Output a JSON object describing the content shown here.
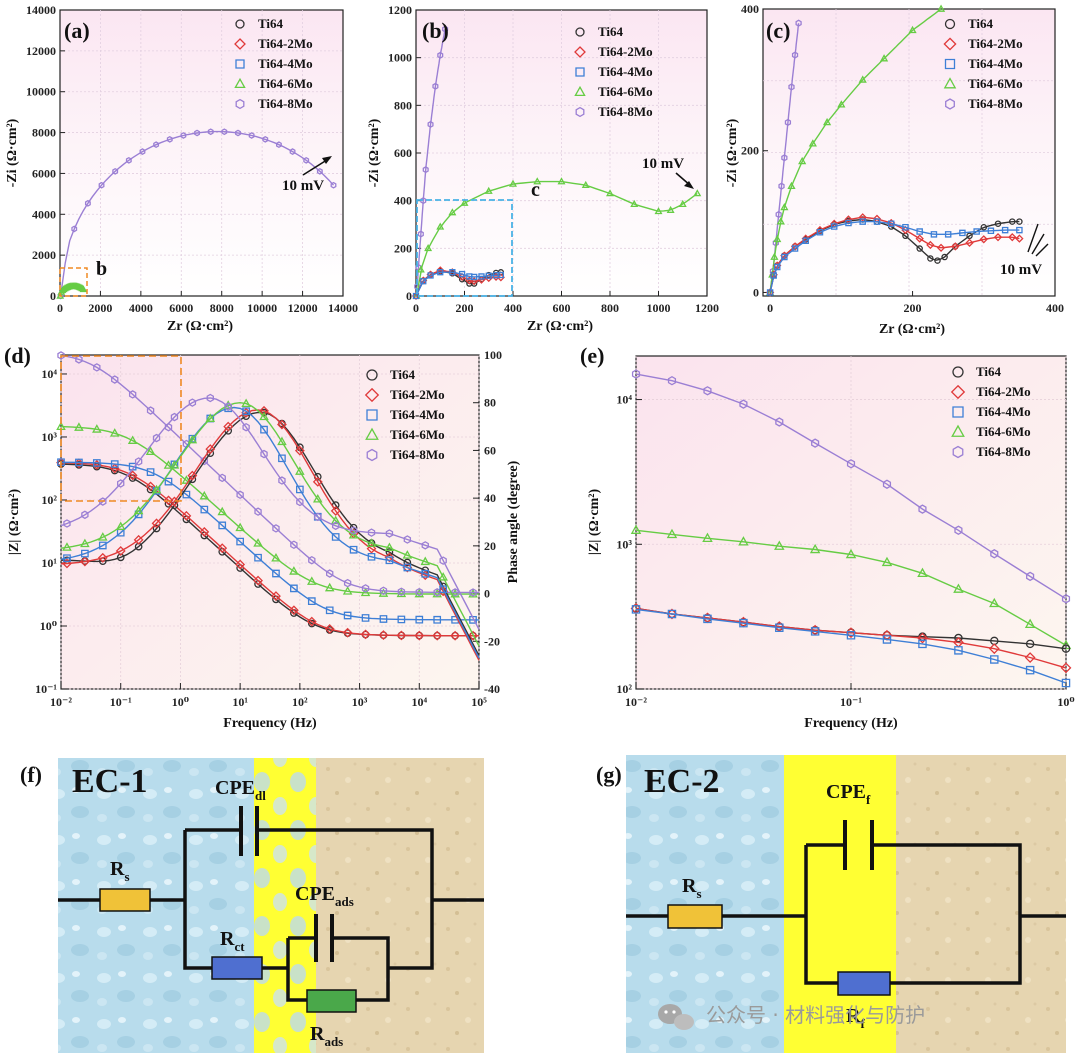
{
  "series_names": [
    "Ti64",
    "Ti64-2Mo",
    "Ti64-4Mo",
    "Ti64-6Mo",
    "Ti64-8Mo"
  ],
  "colors": {
    "Ti64": "#333333",
    "Ti64-2Mo": "#e03a3a",
    "Ti64-4Mo": "#3e7fd6",
    "Ti64-6Mo": "#66cc44",
    "Ti64-8Mo": "#9b7fd4",
    "box_orange": "#f08a24",
    "box_blue": "#4ab3e6",
    "resistor_rs": "#f0c238",
    "resistor_ct": "#4f6fd0",
    "resistor_ads": "#4aa84a",
    "yellow": "#ffff33"
  },
  "chart_data": [
    {
      "panel": "(a)",
      "type": "scatter",
      "title": "",
      "xlabel": "Zr (Ω·cm²)",
      "ylabel": "-Zi (Ω·cm²)",
      "xlim": [
        0,
        14000
      ],
      "ylim": [
        0,
        14000
      ],
      "xticks": [
        "0",
        "2000",
        "4000",
        "6000",
        "8000",
        "10000",
        "12000",
        "14000"
      ],
      "yticks": [
        "0",
        "2000",
        "4000",
        "6000",
        "8000",
        "10000",
        "12000",
        "14000"
      ],
      "legend": [
        "Ti64",
        "Ti64-2Mo",
        "Ti64-4Mo",
        "Ti64-6Mo",
        "Ti64-8Mo"
      ],
      "annotations": [
        "10 mV",
        "b"
      ],
      "series": [
        {
          "name": "Ti64-8Mo",
          "arc": {
            "rs": 30,
            "r": 13500,
            "ymax": 8050,
            "xend": 13500
          }
        },
        {
          "name": "Ti64-6Mo",
          "arc": {
            "rs": 10,
            "r": 1150,
            "ymax": 480,
            "xend": 1150
          }
        }
      ]
    },
    {
      "panel": "(b)",
      "type": "scatter",
      "title": "",
      "xlabel": "Zr (Ω·cm²)",
      "ylabel": "-Zi (Ω·cm²)",
      "xlim": [
        0,
        1200
      ],
      "ylim": [
        0,
        1200
      ],
      "xticks": [
        "0",
        "200",
        "400",
        "600",
        "800",
        "1000",
        "1200"
      ],
      "yticks": [
        "0",
        "200",
        "400",
        "600",
        "800",
        "1000",
        "1200"
      ],
      "legend": [
        "Ti64",
        "Ti64-2Mo",
        "Ti64-4Mo",
        "Ti64-6Mo",
        "Ti64-8Mo"
      ],
      "annotations": [
        "10 mV",
        "c"
      ],
      "series": [
        {
          "name": "Ti64-8Mo",
          "x": [
            5,
            10,
            20,
            30,
            40,
            60,
            80,
            100,
            120
          ],
          "y": [
            40,
            120,
            260,
            400,
            530,
            720,
            880,
            1010,
            1120
          ]
        },
        {
          "name": "Ti64-6Mo",
          "x": [
            2,
            20,
            50,
            100,
            150,
            200,
            300,
            400,
            500,
            600,
            700,
            800,
            900,
            1000,
            1050,
            1100,
            1160
          ],
          "y": [
            0,
            110,
            200,
            290,
            350,
            390,
            440,
            470,
            480,
            480,
            465,
            430,
            385,
            355,
            360,
            385,
            430
          ]
        },
        {
          "name": "Ti64",
          "x": [
            0,
            30,
            60,
            100,
            150,
            190,
            220,
            240,
            270,
            300,
            330,
            350
          ],
          "y": [
            0,
            65,
            90,
            105,
            95,
            70,
            52,
            52,
            70,
            88,
            97,
            100
          ]
        },
        {
          "name": "Ti64-2Mo",
          "x": [
            0,
            30,
            60,
            100,
            150,
            190,
            220,
            240,
            270,
            300,
            330,
            350
          ],
          "y": [
            0,
            65,
            90,
            108,
            100,
            80,
            65,
            62,
            68,
            75,
            80,
            78
          ]
        },
        {
          "name": "Ti64-4Mo",
          "x": [
            0,
            30,
            60,
            100,
            150,
            190,
            220,
            240,
            270,
            300,
            330,
            350
          ],
          "y": [
            0,
            62,
            86,
            100,
            100,
            92,
            82,
            80,
            82,
            85,
            87,
            88
          ]
        }
      ]
    },
    {
      "panel": "(c)",
      "type": "scatter",
      "title": "",
      "xlabel": "Zr (Ω·cm²)",
      "ylabel": "-Zi (Ω·cm²)",
      "xlim": [
        -10,
        400
      ],
      "ylim": [
        -5,
        400
      ],
      "xticks": [
        "0",
        "200",
        "400"
      ],
      "yticks": [
        "0",
        "200",
        "400"
      ],
      "legend": [
        "Ti64",
        "Ti64-2Mo",
        "Ti64-4Mo",
        "Ti64-6Mo",
        "Ti64-8Mo"
      ],
      "annotations": [
        "10 mV"
      ],
      "series": [
        {
          "name": "Ti64-8Mo",
          "x": [
            0,
            4,
            8,
            12,
            16,
            20,
            25,
            30,
            35,
            40
          ],
          "y": [
            0,
            30,
            70,
            110,
            150,
            190,
            240,
            290,
            335,
            380
          ]
        },
        {
          "name": "Ti64-6Mo",
          "x": [
            0,
            3,
            6,
            10,
            15,
            20,
            30,
            45,
            60,
            80,
            100,
            130,
            160,
            200,
            240
          ],
          "y": [
            0,
            25,
            50,
            75,
            100,
            120,
            150,
            185,
            210,
            240,
            265,
            300,
            330,
            370,
            400
          ]
        },
        {
          "name": "Ti64",
          "x": [
            0,
            5,
            10,
            20,
            35,
            50,
            70,
            90,
            110,
            130,
            150,
            170,
            190,
            210,
            225,
            235,
            245,
            260,
            280,
            300,
            320,
            340,
            350
          ],
          "y": [
            0,
            25,
            38,
            52,
            65,
            75,
            87,
            96,
            101,
            103,
            100,
            93,
            80,
            62,
            48,
            45,
            50,
            65,
            80,
            92,
            97,
            100,
            100
          ]
        },
        {
          "name": "Ti64-2Mo",
          "x": [
            0,
            5,
            10,
            20,
            35,
            50,
            70,
            90,
            110,
            130,
            150,
            170,
            190,
            210,
            225,
            240,
            260,
            280,
            300,
            320,
            340,
            350
          ],
          "y": [
            0,
            25,
            38,
            52,
            65,
            76,
            88,
            97,
            103,
            106,
            104,
            98,
            88,
            76,
            67,
            63,
            65,
            70,
            75,
            78,
            78,
            76
          ]
        },
        {
          "name": "Ti64-4Mo",
          "x": [
            0,
            5,
            10,
            20,
            35,
            50,
            70,
            90,
            110,
            130,
            150,
            170,
            190,
            210,
            230,
            250,
            270,
            290,
            310,
            330,
            350
          ],
          "y": [
            0,
            24,
            36,
            50,
            62,
            73,
            85,
            93,
            98,
            100,
            100,
            97,
            92,
            86,
            82,
            82,
            84,
            86,
            87,
            88,
            88
          ]
        }
      ]
    },
    {
      "panel": "(d)",
      "type": "scatter",
      "title": "",
      "xlabel": "Frequency (Hz)",
      "ylabel": "|Z| (Ω·cm²)",
      "y2label": "Phase angle (degree)",
      "xscale": "log",
      "yscale": "log",
      "xlim": [
        0.01,
        100000
      ],
      "ylim": [
        0.1,
        20000
      ],
      "y2lim": [
        -40,
        100
      ],
      "xticks": [
        "10⁻²",
        "10⁻¹",
        "10⁰",
        "10¹",
        "10²",
        "10³",
        "10⁴",
        "10⁵"
      ],
      "yticks": [
        "10⁻¹",
        "10⁰",
        "10¹",
        "10²",
        "10³",
        "10⁴"
      ],
      "y2ticks": [
        "-40",
        "-20",
        "0",
        "20",
        "40",
        "60",
        "80",
        "100"
      ],
      "legend": [
        "Ti64",
        "Ti64-2Mo",
        "Ti64-4Mo",
        "Ti64-6Mo",
        "Ti64-8Mo"
      ],
      "series_modulus": [
        {
          "name": "Ti64",
          "Rs": 0.7,
          "Rp": 380,
          "Q": 0.0032,
          "n": 0.88
        },
        {
          "name": "Ti64-2Mo",
          "Rs": 0.7,
          "Rp": 400,
          "Q": 0.0028,
          "n": 0.88
        },
        {
          "name": "Ti64-4Mo",
          "Rs": 1.25,
          "Rp": 400,
          "Q": 0.0012,
          "n": 0.88
        },
        {
          "name": "Ti64-6Mo",
          "Rs": 3.2,
          "Rp": 1500,
          "Q": 0.0008,
          "n": 0.86
        },
        {
          "name": "Ti64-8Mo",
          "Rs": 3.4,
          "Rp": 22000,
          "Q": 0.0002,
          "n": 0.9
        }
      ],
      "series_phase": [
        {
          "name": "Ti64",
          "peak_f": 22,
          "peak": 76,
          "low": 14,
          "dip_f": 0.12,
          "dip": 10
        },
        {
          "name": "Ti64-2Mo",
          "peak_f": 20,
          "peak": 77,
          "low": 12
        },
        {
          "name": "Ti64-4Mo",
          "peak_f": 8,
          "peak": 78,
          "low": 13
        },
        {
          "name": "Ti64-6Mo",
          "peak_f": 10,
          "peak": 80,
          "low": 18
        },
        {
          "name": "Ti64-8Mo",
          "peak_f": 3,
          "peak": 82,
          "low": 25
        }
      ]
    },
    {
      "panel": "(e)",
      "type": "line",
      "title": "",
      "xlabel": "Frequency (Hz)",
      "ylabel": "|Z| (Ω·cm²)",
      "xscale": "log",
      "yscale": "log",
      "xlim": [
        0.01,
        1
      ],
      "ylim": [
        100,
        20000
      ],
      "xticks": [
        "10⁻²",
        "10⁻¹",
        "10⁰"
      ],
      "yticks": [
        "10²",
        "10³",
        "10⁴"
      ],
      "legend": [
        "Ti64",
        "Ti64-2Mo",
        "Ti64-4Mo",
        "Ti64-6Mo",
        "Ti64-8Mo"
      ],
      "x": [
        0.01,
        0.0147,
        0.0215,
        0.0316,
        0.0464,
        0.0681,
        0.1,
        0.147,
        0.215,
        0.316,
        0.464,
        0.681,
        1.0
      ],
      "series": [
        {
          "name": "Ti64-8Mo",
          "values": [
            15000,
            13500,
            11500,
            9300,
            7000,
            5000,
            3600,
            2600,
            1750,
            1250,
            860,
            600,
            420
          ]
        },
        {
          "name": "Ti64-6Mo",
          "values": [
            1250,
            1170,
            1100,
            1040,
            970,
            920,
            850,
            750,
            630,
            490,
            390,
            280,
            200
          ]
        },
        {
          "name": "Ti64",
          "values": [
            360,
            330,
            310,
            290,
            270,
            255,
            245,
            235,
            230,
            225,
            215,
            205,
            190
          ]
        },
        {
          "name": "Ti64-2Mo",
          "values": [
            360,
            330,
            310,
            290,
            270,
            255,
            245,
            235,
            225,
            210,
            190,
            165,
            140
          ]
        },
        {
          "name": "Ti64-4Mo",
          "values": [
            355,
            330,
            305,
            285,
            265,
            250,
            235,
            220,
            205,
            185,
            160,
            135,
            110
          ]
        }
      ]
    }
  ],
  "circuits": {
    "f": {
      "panel": "(f)",
      "title": "EC-1",
      "cpe_dl": "CPE",
      "cpe_dl_sub": "dl",
      "cpe_ads": "CPE",
      "cpe_ads_sub": "ads",
      "rs": "R",
      "rs_sub": "s",
      "rct": "R",
      "rct_sub": "ct",
      "rads": "R",
      "rads_sub": "ads"
    },
    "g": {
      "panel": "(g)",
      "title": "EC-2",
      "cpe_f": "CPE",
      "cpe_f_sub": "f",
      "rs": "R",
      "rs_sub": "s",
      "rf": "R",
      "rf_sub": "f"
    }
  },
  "watermark": "公众号 · 材料强化与防护",
  "icons": [
    "wechat-icon"
  ]
}
